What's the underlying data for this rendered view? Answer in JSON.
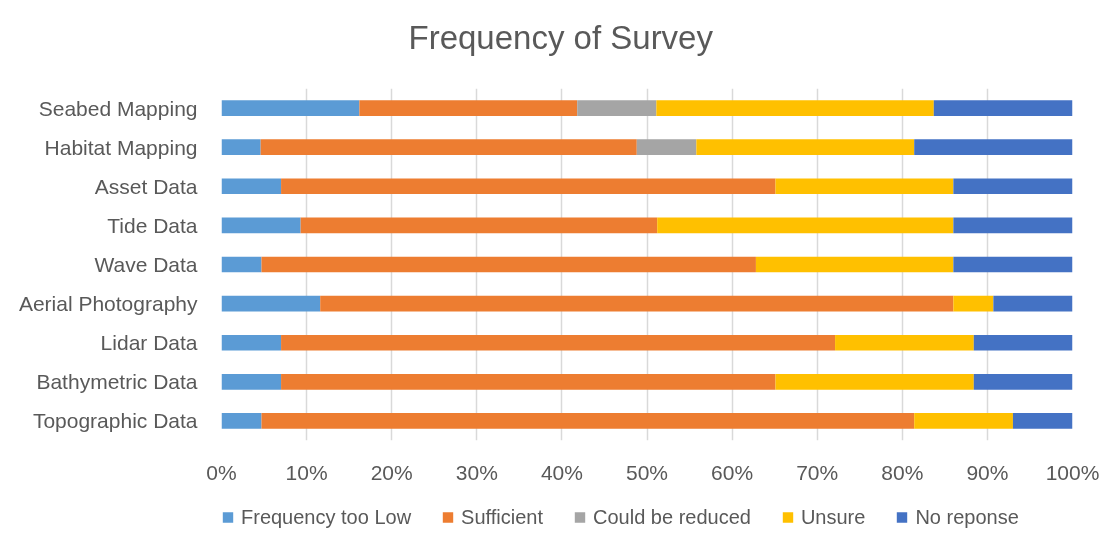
{
  "chart_data": {
    "type": "bar",
    "orientation": "horizontal",
    "stacked": true,
    "title": "Frequency of Survey",
    "categories": [
      "Seabed Mapping",
      "Habitat Mapping",
      "Asset Data",
      "Tide Data",
      "Wave Data",
      "Aerial Photography",
      "Lidar Data",
      "Bathymetric Data",
      "Topographic Data"
    ],
    "series": [
      {
        "name": "Frequency too Low",
        "color": "#5b9bd5",
        "values": [
          16.2,
          4.6,
          7.0,
          9.3,
          4.7,
          11.6,
          7.0,
          7.0,
          4.7
        ]
      },
      {
        "name": "Sufficient",
        "color": "#ed7d31",
        "values": [
          25.6,
          44.2,
          58.1,
          41.9,
          58.1,
          74.4,
          65.1,
          58.1,
          76.7
        ]
      },
      {
        "name": "Could be reduced",
        "color": "#a5a5a5",
        "values": [
          9.3,
          7.0,
          null,
          null,
          null,
          null,
          null,
          null,
          null
        ]
      },
      {
        "name": "Unsure",
        "color": "#ffc000",
        "values": [
          32.6,
          25.6,
          20.9,
          34.8,
          23.2,
          4.7,
          16.3,
          23.3,
          11.6
        ]
      },
      {
        "name": "No reponse",
        "color": "#4472c4",
        "values": [
          16.3,
          18.6,
          14.0,
          14.0,
          14.0,
          9.3,
          11.6,
          11.6,
          7.0
        ]
      }
    ],
    "xlim": [
      0,
      100
    ],
    "xticks": [
      {
        "value": 0,
        "label": "0%"
      },
      {
        "value": 10,
        "label": "10%"
      },
      {
        "value": 20,
        "label": "20%"
      },
      {
        "value": 30,
        "label": "30%"
      },
      {
        "value": 40,
        "label": "40%"
      },
      {
        "value": 50,
        "label": "50%"
      },
      {
        "value": 60,
        "label": "60%"
      },
      {
        "value": 70,
        "label": "70%"
      },
      {
        "value": 80,
        "label": "80%"
      },
      {
        "value": 90,
        "label": "90%"
      },
      {
        "value": 100,
        "label": "100%"
      }
    ],
    "grid": "x",
    "legend": "bottom"
  }
}
